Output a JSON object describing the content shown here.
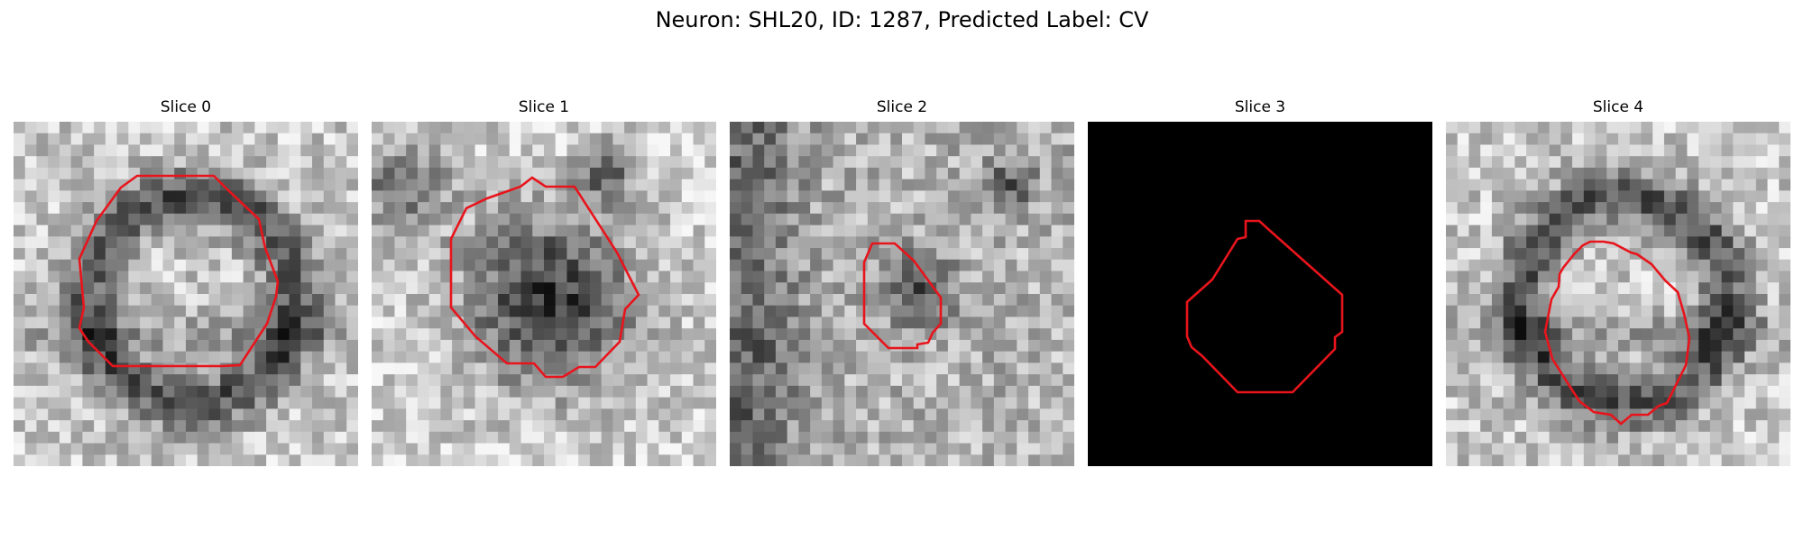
{
  "figure": {
    "title": "Neuron: SHL20, ID: 1287, Predicted Label: CV",
    "contour_color": "#e8141c",
    "colormap": "grayscale",
    "grid_size": 30
  },
  "panels": [
    {
      "title": "Slice 0",
      "seed": 11,
      "blank": false,
      "structure": "ring"
    },
    {
      "title": "Slice 1",
      "seed": 23,
      "blank": false,
      "structure": "dark-blob"
    },
    {
      "title": "Slice 2",
      "seed": 37,
      "blank": false,
      "structure": "small-dark-blob"
    },
    {
      "title": "Slice 3",
      "seed": 0,
      "blank": true,
      "structure": "none"
    },
    {
      "title": "Slice 4",
      "seed": 53,
      "blank": false,
      "structure": "ring"
    }
  ]
}
